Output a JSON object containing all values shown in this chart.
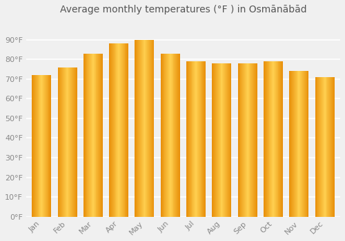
{
  "title": "Average monthly temperatures (°F ) in Osmānābād",
  "months": [
    "Jan",
    "Feb",
    "Mar",
    "Apr",
    "May",
    "Jun",
    "Jul",
    "Aug",
    "Sep",
    "Oct",
    "Nov",
    "Dec"
  ],
  "values": [
    72,
    76,
    83,
    88,
    90,
    83,
    79,
    78,
    78,
    79,
    74,
    71
  ],
  "bar_color_left": "#E8900A",
  "bar_color_center": "#FFD050",
  "bar_color_right": "#E8900A",
  "ylim": [
    0,
    100
  ],
  "yticks": [
    0,
    10,
    20,
    30,
    40,
    50,
    60,
    70,
    80,
    90
  ],
  "ytick_labels": [
    "0°F",
    "10°F",
    "20°F",
    "30°F",
    "40°F",
    "50°F",
    "60°F",
    "70°F",
    "80°F",
    "90°F"
  ],
  "background_color": "#f0f0f0",
  "grid_color": "#ffffff",
  "title_fontsize": 10,
  "tick_fontsize": 8,
  "bar_width": 0.75,
  "n_gradient_steps": 30
}
